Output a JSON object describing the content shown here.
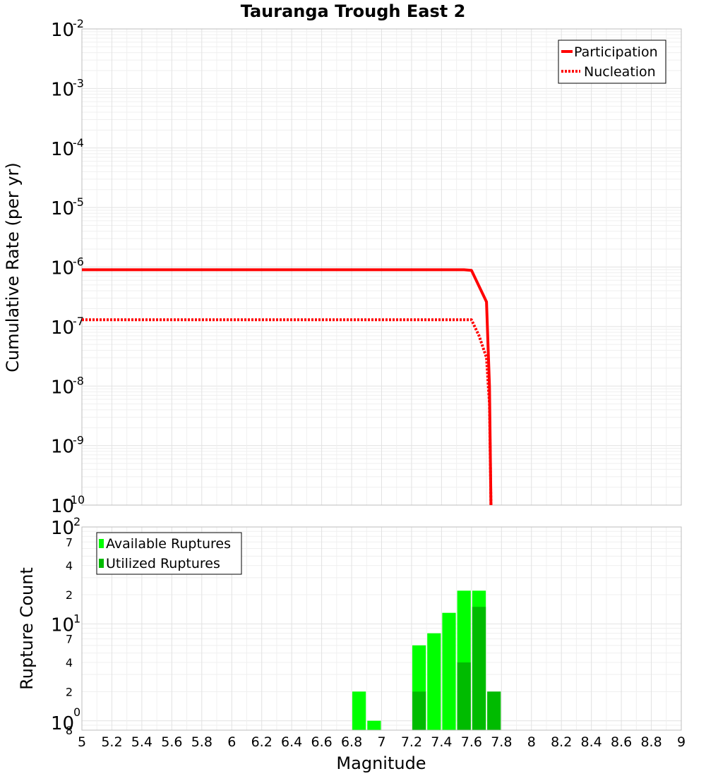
{
  "chart_data": [
    {
      "type": "line",
      "title": "Tauranga Trough East 2",
      "xlabel": "Magnitude",
      "ylabel": "Cumulative Rate (per yr)",
      "yscale": "log",
      "xlim": [
        5,
        9
      ],
      "ylim": [
        1e-10,
        0.01
      ],
      "y_tick_exponents": [
        "-2",
        "-3",
        "-4",
        "-5",
        "-6",
        "-7",
        "-8",
        "-9",
        "-10"
      ],
      "legend": "top-right",
      "series": [
        {
          "name": "Participation",
          "style": "solid",
          "color": "#ff0000",
          "x": [
            5.0,
            7.55,
            7.6,
            7.7,
            7.72,
            7.73
          ],
          "y": [
            9e-07,
            9e-07,
            8.8e-07,
            2.6e-07,
            1e-08,
            1e-10
          ]
        },
        {
          "name": "Nucleation",
          "style": "dotted",
          "color": "#ff0000",
          "x": [
            5.0,
            7.6,
            7.65,
            7.7,
            7.72,
            7.73
          ],
          "y": [
            1.3e-07,
            1.3e-07,
            7e-08,
            3e-08,
            5e-09,
            1e-10
          ]
        }
      ]
    },
    {
      "type": "bar",
      "xlabel": "Magnitude",
      "ylabel": "Rupture Count",
      "yscale": "log",
      "xlim": [
        5,
        9
      ],
      "ylim": [
        0.8,
        100
      ],
      "x_ticks": [
        "5",
        "5.2",
        "5.4",
        "5.6",
        "5.8",
        "6",
        "6.2",
        "6.4",
        "6.6",
        "6.8",
        "7",
        "7.2",
        "7.4",
        "7.6",
        "7.8",
        "8",
        "8.2",
        "8.4",
        "8.6",
        "8.8",
        "9"
      ],
      "legend": "top-left",
      "bin_width": 0.1,
      "bin_centers": [
        6.85,
        6.95,
        7.25,
        7.35,
        7.45,
        7.55,
        7.65,
        7.75
      ],
      "series": [
        {
          "name": "Available Ruptures",
          "color": "#00ff00",
          "values": [
            2,
            1,
            6,
            8,
            13,
            22,
            22,
            0
          ]
        },
        {
          "name": "Utilized Ruptures",
          "color": "#00bb00",
          "values": [
            0,
            0,
            2,
            0,
            0,
            4,
            15,
            2
          ]
        }
      ]
    }
  ]
}
